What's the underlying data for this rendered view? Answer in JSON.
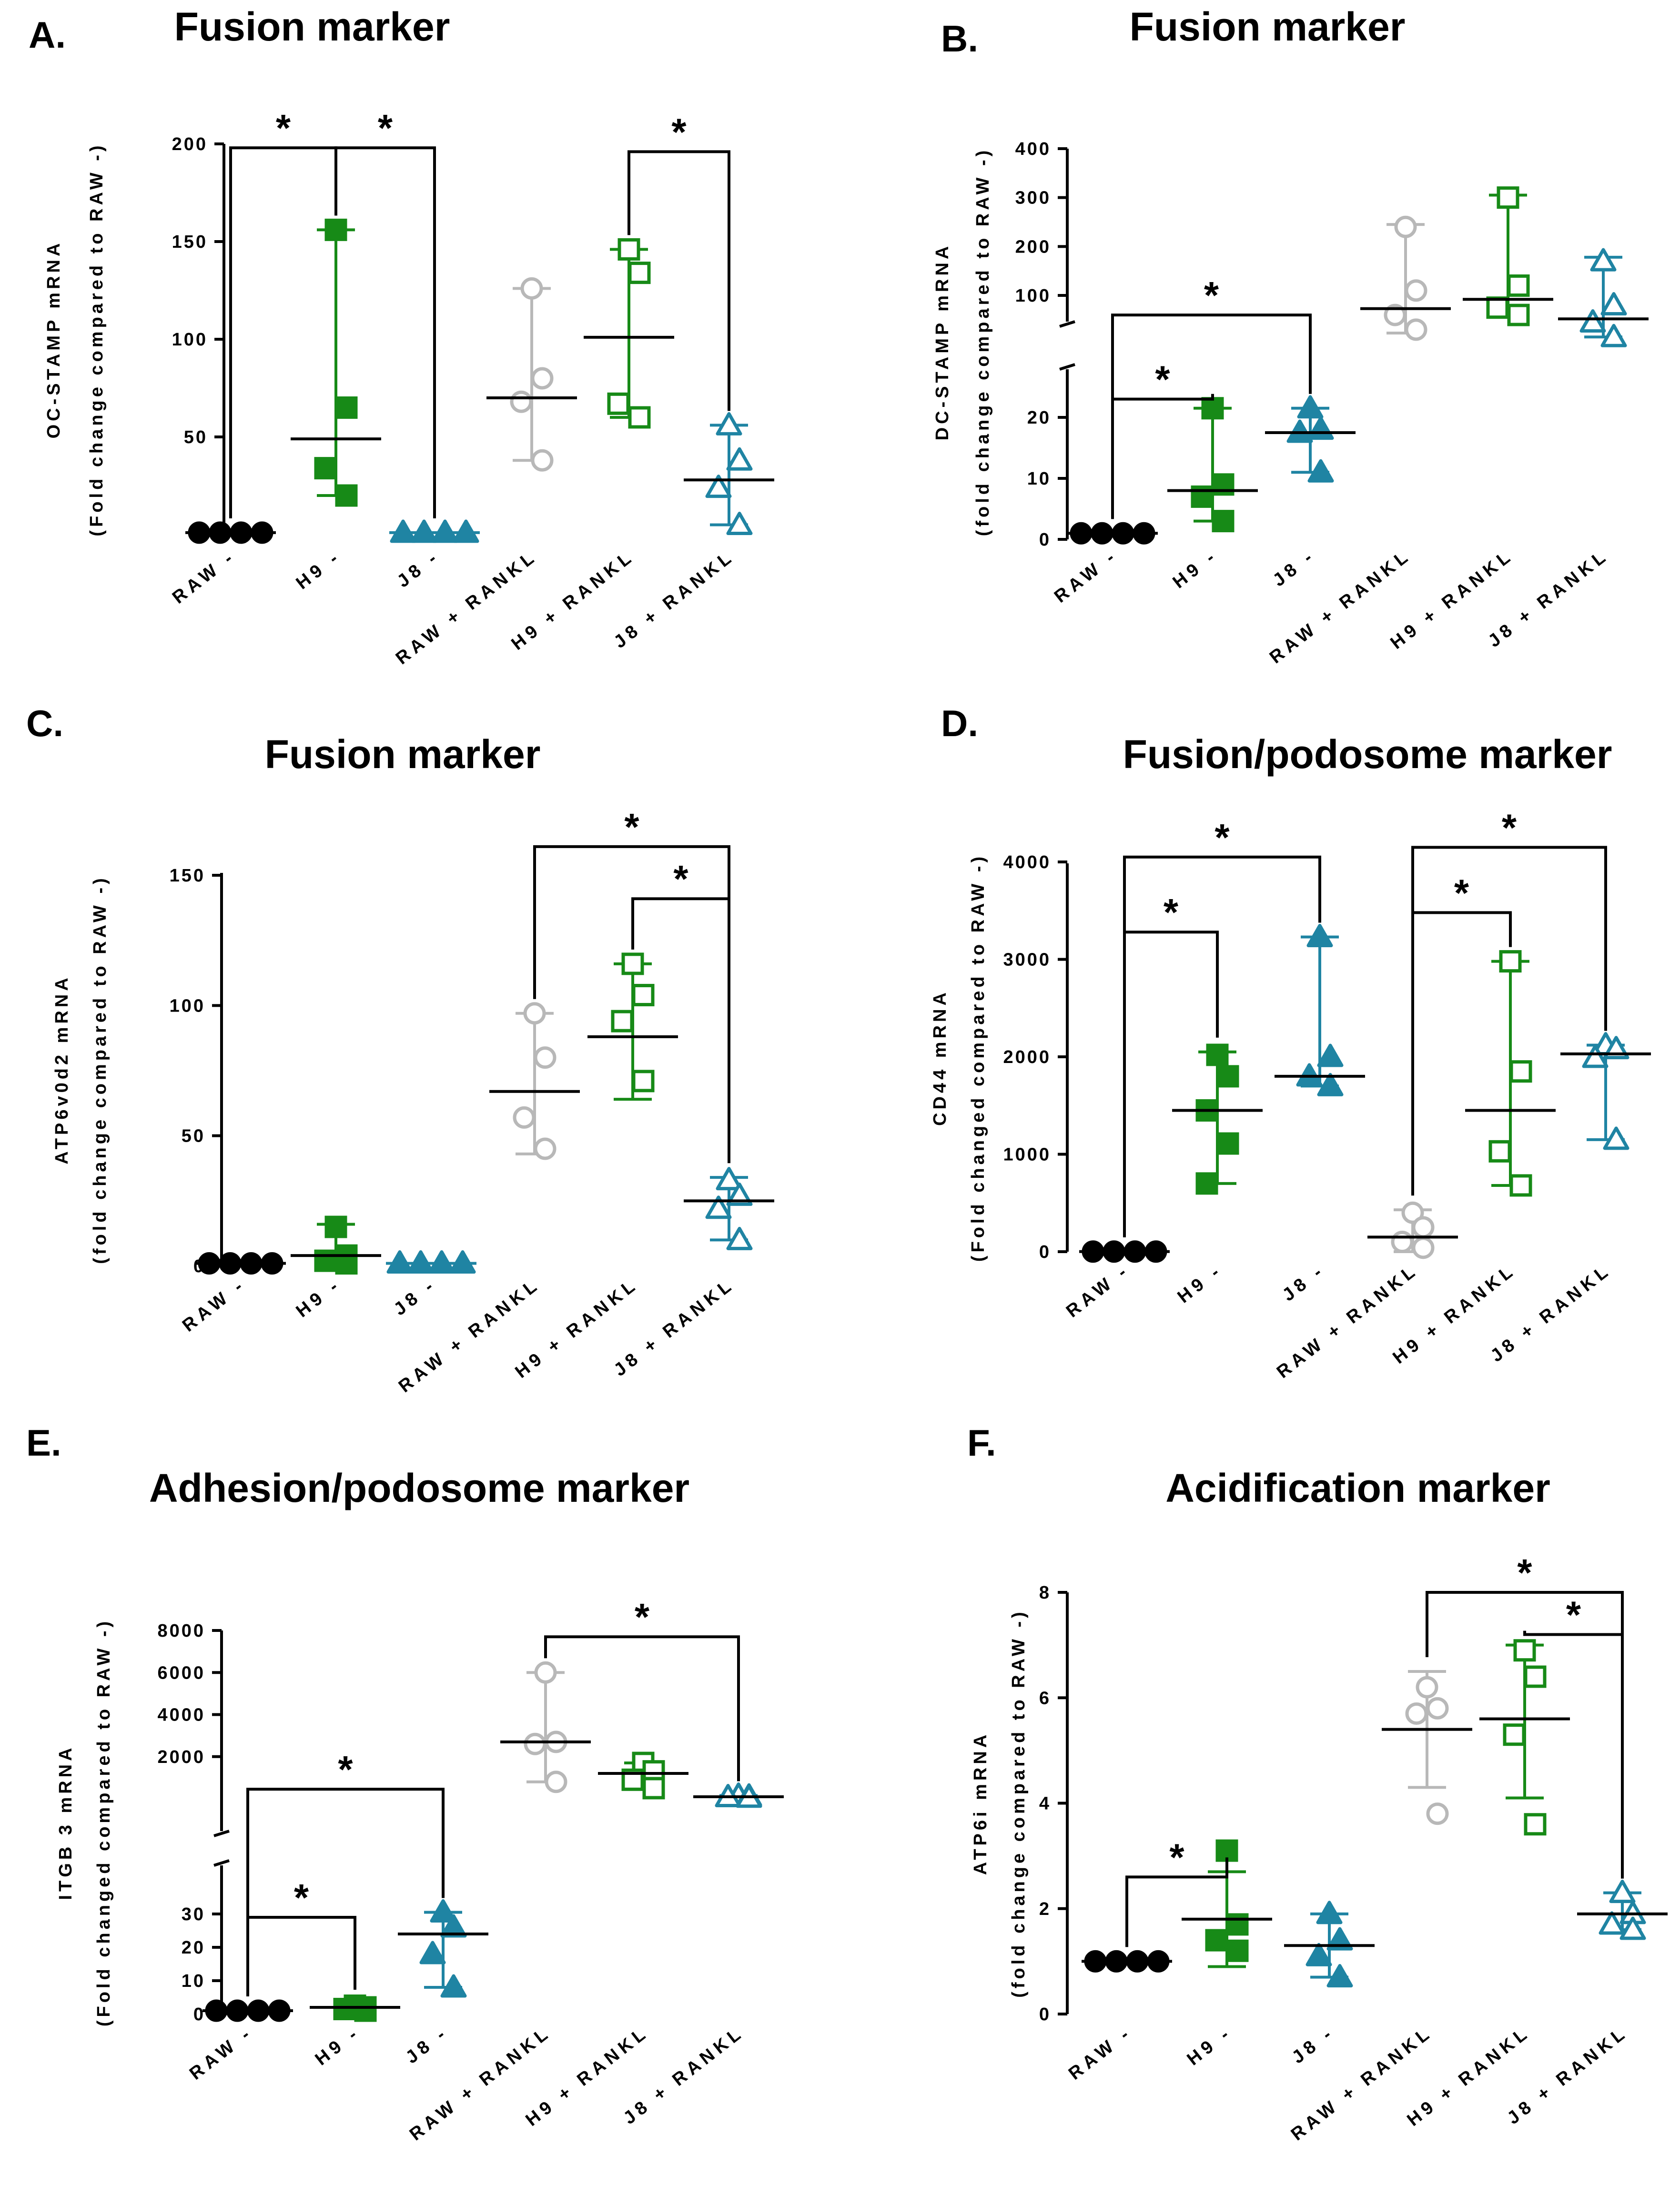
{
  "palette": {
    "black": "#000000",
    "green": "#178a17",
    "teal": "#1f84a3",
    "grey": "#b8b8b8"
  },
  "series_styles": {
    "RAW -": {
      "color": "black",
      "marker": "circle",
      "filled": true
    },
    "H9 -": {
      "color": "green",
      "marker": "square",
      "filled": true
    },
    "J8 -": {
      "color": "teal",
      "marker": "triangle",
      "filled": true
    },
    "RAW + RANKL": {
      "color": "grey",
      "marker": "circle",
      "filled": false
    },
    "H9 + RANKL": {
      "color": "green",
      "marker": "square",
      "filled": false
    },
    "J8 + RANKL": {
      "color": "teal",
      "marker": "triangle",
      "filled": false
    }
  },
  "chart_data": [
    {
      "panel": "A.",
      "type": "scatter",
      "title": "Fusion marker",
      "ylabel": "OC-STAMP mRNA",
      "ylabel2": "(Fold change compared to RAW -)",
      "categories": [
        "RAW -",
        "H9 -",
        "J8 -",
        "RAW + RANKL",
        "H9 + RANKL",
        "J8 + RANKL"
      ],
      "ylim": [
        0,
        200
      ],
      "yticks": [
        "0",
        "50",
        "100",
        "150",
        "200"
      ],
      "series": [
        {
          "name": "RAW -",
          "points": [
            1,
            1,
            1,
            1
          ],
          "center": 1,
          "low": 1,
          "high": 1
        },
        {
          "name": "H9 -",
          "points": [
            156,
            65,
            34,
            20
          ],
          "center": 49,
          "low": 20,
          "high": 156
        },
        {
          "name": "J8 -",
          "points": [
            1,
            1,
            1,
            1
          ],
          "center": 1,
          "low": 1,
          "high": 1
        },
        {
          "name": "RAW + RANKL",
          "points": [
            126,
            80,
            68,
            38
          ],
          "center": 70,
          "low": 38,
          "high": 126
        },
        {
          "name": "H9 + RANKL",
          "points": [
            146,
            134,
            67,
            60
          ],
          "center": 101,
          "low": 60,
          "high": 146
        },
        {
          "name": "J8 + RANKL",
          "points": [
            56,
            38,
            24,
            5
          ],
          "center": 28,
          "low": 5,
          "high": 56
        }
      ],
      "significance": [
        {
          "from": "RAW -",
          "to": "H9 -",
          "level": 198,
          "label": "*"
        },
        {
          "from": "H9 -",
          "to": "J8 -",
          "level": 198,
          "label": "*"
        },
        {
          "from": "H9 + RANKL",
          "to": "J8 + RANKL",
          "level": 196,
          "label": "*"
        }
      ]
    },
    {
      "panel": "B.",
      "type": "scatter",
      "title": "Fusion marker",
      "ylabel": "DC-STAMP mRNA",
      "ylabel2": "(fold change compared to RAW -)",
      "categories": [
        "RAW -",
        "H9 -",
        "J8 -",
        "RAW + RANKL",
        "H9 + RANKL",
        "J8 + RANKL"
      ],
      "ylim": [
        0,
        400
      ],
      "yticks": [
        "0",
        "10",
        "20",
        "100",
        "200",
        "300",
        "400"
      ],
      "axis_break": {
        "lower": [
          0,
          25
        ],
        "upper": [
          100,
          400
        ]
      },
      "series": [
        {
          "name": "RAW -",
          "points": [
            1,
            1,
            1,
            1
          ],
          "center": 1,
          "low": 1,
          "high": 1
        },
        {
          "name": "H9 -",
          "points": [
            21.5,
            9,
            7,
            3
          ],
          "center": 8,
          "low": 3,
          "high": 21.5
        },
        {
          "name": "J8 -",
          "points": [
            21.5,
            18,
            17.5,
            11
          ],
          "center": 17.5,
          "low": 11,
          "high": 21.5
        },
        {
          "name": "RAW + RANKL",
          "points": [
            240,
            110,
            60,
            30
          ],
          "center": 73,
          "low": 23,
          "high": 245
        },
        {
          "name": "H9 + RANKL",
          "points": [
            300,
            120,
            75,
            60
          ],
          "center": 92,
          "low": 60,
          "high": 305
        },
        {
          "name": "J8 + RANKL",
          "points": [
            170,
            80,
            45,
            15
          ],
          "center": 52,
          "low": 15,
          "high": 178
        }
      ],
      "significance": [
        {
          "from": "RAW -",
          "to": "H9 -",
          "level": 23,
          "label": "*"
        },
        {
          "from": "RAW -",
          "to": "J8 -",
          "level": 60,
          "label": "*"
        }
      ]
    },
    {
      "panel": "C.",
      "type": "scatter",
      "title": "Fusion marker",
      "ylabel": "ATP6v0d2 mRNA",
      "ylabel2": "(fold change compared to RAW -)",
      "categories": [
        "RAW -",
        "H9 -",
        "J8 -",
        "RAW + RANKL",
        "H9 + RANKL",
        "J8 + RANKL"
      ],
      "ylim": [
        0,
        150
      ],
      "yticks": [
        "0",
        "50",
        "100",
        "150"
      ],
      "series": [
        {
          "name": "RAW -",
          "points": [
            1,
            1,
            1,
            1
          ],
          "center": 1,
          "low": 1,
          "high": 1
        },
        {
          "name": "H9 -",
          "points": [
            15,
            4,
            2,
            1
          ],
          "center": 4,
          "low": 0,
          "high": 16
        },
        {
          "name": "J8 -",
          "points": [
            1,
            1,
            1,
            1
          ],
          "center": 1,
          "low": 1,
          "high": 1
        },
        {
          "name": "RAW + RANKL",
          "points": [
            97,
            80,
            57,
            45
          ],
          "center": 67,
          "low": 43,
          "high": 97
        },
        {
          "name": "H9 + RANKL",
          "points": [
            116,
            104,
            94,
            71
          ],
          "center": 88,
          "low": 64,
          "high": 116
        },
        {
          "name": "J8 + RANKL",
          "points": [
            33,
            27,
            22,
            10
          ],
          "center": 25,
          "low": 10,
          "high": 34
        }
      ],
      "significance": [
        {
          "from": "RAW + RANKL",
          "to": "J8 + RANKL",
          "level": 161,
          "label": "*"
        },
        {
          "from": "H9 + RANKL",
          "to": "J8 + RANKL",
          "level": 141,
          "label": "*"
        }
      ]
    },
    {
      "panel": "D.",
      "type": "scatter",
      "title": "Fusion/podosome marker",
      "ylabel": "CD44 mRNA",
      "ylabel2": "(Fold changed compared to RAW -)",
      "categories": [
        "RAW -",
        "H9 -",
        "J8 -",
        "RAW + RANKL",
        "H9 + RANKL",
        "J8 + RANKL"
      ],
      "ylim": [
        0,
        4000
      ],
      "yticks": [
        "0",
        "1000",
        "2000",
        "3000",
        "4000"
      ],
      "series": [
        {
          "name": "RAW -",
          "points": [
            1,
            1,
            1,
            1
          ],
          "center": 1,
          "low": 1,
          "high": 1
        },
        {
          "name": "H9 -",
          "points": [
            2020,
            1800,
            1450,
            1110,
            700
          ],
          "center": 1450,
          "low": 700,
          "high": 2050
        },
        {
          "name": "J8 -",
          "points": [
            3230,
            2000,
            1800,
            1700
          ],
          "center": 1800,
          "low": 1700,
          "high": 3230
        },
        {
          "name": "RAW + RANKL",
          "points": [
            400,
            250,
            100,
            40
          ],
          "center": 150,
          "low": 0,
          "high": 430
        },
        {
          "name": "H9 + RANKL",
          "points": [
            2980,
            1850,
            1030,
            680
          ],
          "center": 1450,
          "low": 680,
          "high": 2980
        },
        {
          "name": "J8 + RANKL",
          "points": [
            2120,
            2080,
            1990,
            1150
          ],
          "center": 2030,
          "low": 1150,
          "high": 2120
        }
      ],
      "significance": [
        {
          "from": "RAW -",
          "to": "H9 -",
          "level": 3280,
          "label": "*"
        },
        {
          "from": "RAW -",
          "to": "J8 -",
          "level": 4050,
          "label": "*"
        },
        {
          "from": "RAW + RANKL",
          "to": "H9 + RANKL",
          "level": 3480,
          "label": "*"
        },
        {
          "from": "RAW + RANKL",
          "to": "J8 + RANKL",
          "level": 4150,
          "label": "*"
        }
      ]
    },
    {
      "panel": "E.",
      "type": "scatter",
      "title": "Adhesion/podosome marker",
      "ylabel": "ITGB 3 mRNA",
      "ylabel2": "(Fold changed compared to RAW -)",
      "categories": [
        "RAW -",
        "H9 -",
        "J8 -",
        "RAW + RANKL",
        "H9 + RANKL",
        "J8 + RANKL"
      ],
      "ylim": [
        0,
        8000
      ],
      "yticks": [
        "0",
        "10",
        "20",
        "30",
        "2000",
        "4000",
        "6000",
        "8000"
      ],
      "axis_break": {
        "lower": [
          0,
          35
        ],
        "upper": [
          0,
          8000
        ]
      },
      "series": [
        {
          "name": "RAW -",
          "points": [
            1,
            1,
            1,
            1
          ],
          "center": 1,
          "low": 1,
          "high": 1
        },
        {
          "name": "H9 -",
          "points": [
            2.5,
            2,
            1.5,
            1
          ],
          "center": 2,
          "low": 0.5,
          "high": 3
        },
        {
          "name": "J8 -",
          "points": [
            30.5,
            26,
            18,
            8
          ],
          "center": 24,
          "low": 8,
          "high": 30.5
        },
        {
          "name": "RAW + RANKL",
          "points": [
            6000,
            2700,
            2600,
            800
          ],
          "center": 2700,
          "low": 800,
          "high": 6000
        },
        {
          "name": "H9 + RANKL",
          "points": [
            1700,
            1300,
            900,
            500
          ],
          "center": 1200,
          "low": 500,
          "high": 1700
        },
        {
          "name": "J8 + RANKL",
          "points": [
            150,
            110,
            80,
            50
          ],
          "center": 90,
          "low": 50,
          "high": 150
        }
      ],
      "significance": [
        {
          "from": "RAW -",
          "to": "H9 -",
          "level": 29,
          "label": "*"
        },
        {
          "from": "RAW -",
          "to": "J8 -",
          "level": 450,
          "label": "*"
        },
        {
          "from": "RAW + RANKL",
          "to": "J8 + RANKL",
          "level": 7700,
          "label": "*"
        }
      ]
    },
    {
      "panel": "F.",
      "type": "scatter",
      "title": "Acidification marker",
      "ylabel": "ATP6i mRNA",
      "ylabel2": "(fold change compared to RAW -)",
      "categories": [
        "RAW -",
        "H9 -",
        "J8 -",
        "RAW + RANKL",
        "H9 + RANKL",
        "J8 + RANKL"
      ],
      "ylim": [
        0,
        8
      ],
      "yticks": [
        "0",
        "2",
        "4",
        "6",
        "8"
      ],
      "series": [
        {
          "name": "RAW -",
          "points": [
            1,
            1,
            1,
            1
          ],
          "center": 1,
          "low": 1,
          "high": 1
        },
        {
          "name": "H9 -",
          "points": [
            3.1,
            1.7,
            1.4,
            1.2
          ],
          "center": 1.8,
          "low": 0.9,
          "high": 2.7
        },
        {
          "name": "J8 -",
          "points": [
            1.9,
            1.4,
            1.1,
            0.7
          ],
          "center": 1.3,
          "low": 0.7,
          "high": 1.9
        },
        {
          "name": "RAW + RANKL",
          "points": [
            6.2,
            5.8,
            5.7,
            3.8
          ],
          "center": 5.4,
          "low": 4.3,
          "high": 6.5
        },
        {
          "name": "H9 + RANKL",
          "points": [
            6.9,
            6.4,
            5.3,
            3.6
          ],
          "center": 5.6,
          "low": 4.1,
          "high": 7.0
        },
        {
          "name": "J8 + RANKL",
          "points": [
            2.3,
            1.9,
            1.7,
            1.6
          ],
          "center": 1.9,
          "low": 1.6,
          "high": 2.3
        }
      ],
      "significance": [
        {
          "from": "RAW -",
          "to": "H9 -",
          "level": 2.6,
          "label": "*"
        },
        {
          "from": "RAW + RANKL",
          "to": "J8 + RANKL",
          "level": 8.0,
          "label": "*"
        },
        {
          "from": "H9 + RANKL",
          "to": "J8 + RANKL",
          "level": 7.2,
          "label": "*"
        }
      ]
    }
  ]
}
